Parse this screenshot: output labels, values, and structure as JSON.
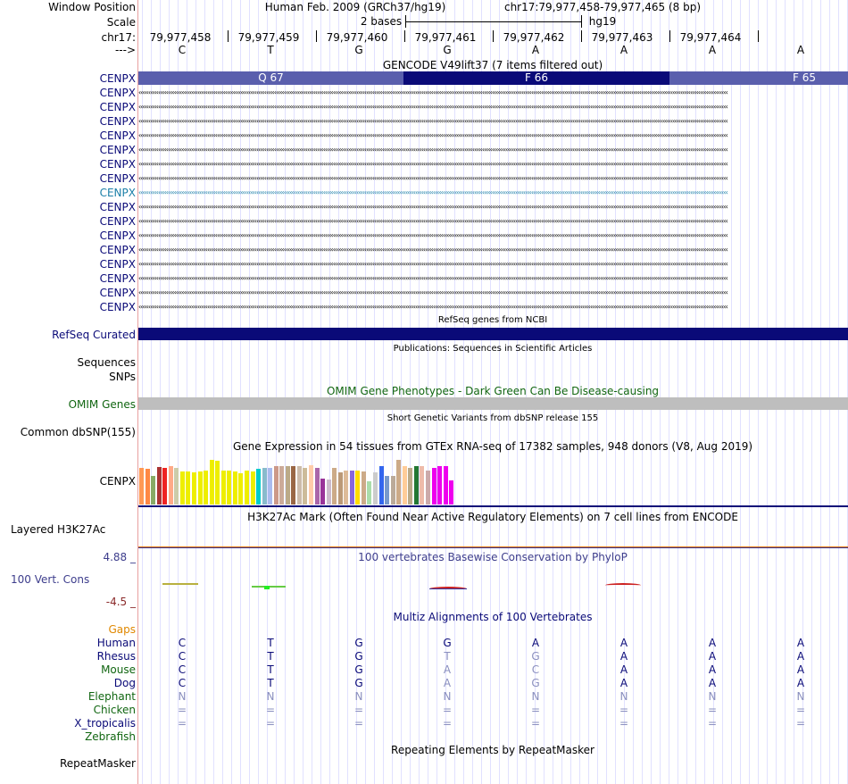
{
  "header": {
    "window_position_label": "Window Position",
    "assembly_text": "Human Feb. 2009 (GRCh37/hg19)",
    "position_text": "chr17:79,977,458-79,977,465 (8 bp)",
    "scale_label": "Scale",
    "scale_text": "2 bases",
    "scale_db": "hg19",
    "chrom_label": "chr17:",
    "strand_label": "--->",
    "ruler_ticks": [
      "79,977,458",
      "79,977,459",
      "79,977,460",
      "79,977,461",
      "79,977,462",
      "79,977,463",
      "79,977,464"
    ],
    "bases": [
      "C",
      "T",
      "G",
      "G",
      "A",
      "A",
      "A",
      "A"
    ]
  },
  "gencode": {
    "title": "GENCODE V49lift37 (7 items filtered out)",
    "codons": [
      {
        "label": "Q 67",
        "color": "#5a5fad"
      },
      {
        "label": "F 66",
        "color": "#0a0a78"
      },
      {
        "label": "F 65",
        "color": "#5a5fad"
      }
    ],
    "transcripts": [
      "CENPX",
      "CENPX",
      "CENPX",
      "CENPX",
      "CENPX",
      "CENPX",
      "CENPX",
      "CENPX",
      "CENPX",
      "CENPX",
      "CENPX",
      "CENPX",
      "CENPX",
      "CENPX",
      "CENPX",
      "CENPX",
      "CENPX"
    ],
    "highlight_index": 8,
    "label_color": "#0a0a78",
    "highlight_color": "#1b7fa8"
  },
  "refseq": {
    "title": "RefSeq genes from NCBI",
    "label": "RefSeq Curated",
    "bar_color": "#0a0a78"
  },
  "publications": {
    "title": "Publications: Sequences in Scientific Articles",
    "label_sequences": "Sequences",
    "label_snps": "SNPs"
  },
  "omim": {
    "title": "OMIM Gene Phenotypes - Dark Green Can Be Disease-causing",
    "label": "OMIM Genes",
    "color": "#116611"
  },
  "dbsnp": {
    "title": "Short Genetic Variants from dbSNP release 155",
    "label": "Common dbSNP(155)"
  },
  "gtex": {
    "title": "Gene Expression in 54 tissues from GTEx RNA-seq of 17382 samples, 948 donors (V8, Aug 2019)",
    "label": "CENPX",
    "tissue_expression": [
      0.9,
      0.88,
      0.72,
      0.93,
      0.9,
      0.95,
      0.9,
      0.82,
      0.82,
      0.8,
      0.82,
      0.85,
      1.12,
      1.08,
      0.85,
      0.85,
      0.82,
      0.78,
      0.85,
      0.82,
      0.88,
      0.92,
      0.92,
      0.95,
      0.95,
      0.95,
      0.95,
      0.95,
      0.92,
      0.98,
      0.92,
      0.65,
      0.62,
      0.92,
      0.8,
      0.85,
      0.85,
      0.85,
      0.82,
      0.58,
      0.8,
      0.95,
      0.72,
      0.72,
      1.1,
      0.95,
      0.92,
      0.95,
      0.95,
      0.85,
      0.92,
      0.95,
      0.95,
      0.6
    ],
    "tissue_colors": [
      "#ff9955",
      "#ff8844",
      "#88aa66",
      "#aa3333",
      "#ee2222",
      "#ffaa88",
      "#ccccaa",
      "#eeee00",
      "#eeee00",
      "#eeee00",
      "#eeee00",
      "#eeee00",
      "#eeee00",
      "#eeee00",
      "#eeee00",
      "#eeee00",
      "#eeee00",
      "#eeee00",
      "#eeee00",
      "#eeee00",
      "#00cccc",
      "#88bbcc",
      "#aabbee",
      "#cc9988",
      "#ccaa99",
      "#bbaa88",
      "#996644",
      "#ccbbaa",
      "#ccbb99",
      "#ffccaa",
      "#aa66aa",
      "#993399",
      "#ccbbcc",
      "#ccaa88",
      "#bb9977",
      "#ddbb99",
      "#8866dd",
      "#ffdd00",
      "#ccaa88",
      "#aaddaa",
      "#cccccc",
      "#3366ee",
      "#7799cc",
      "#bbaa99",
      "#ccaa88",
      "#ffcc99",
      "#bbaa88",
      "#227733",
      "#eebbaa",
      "#ccaaaa",
      "#ee00ee",
      "#ee00ee",
      "#ee00ee",
      "#ee00ee"
    ]
  },
  "h3k27ac": {
    "title": "H3K27Ac Mark (Often Found Near Active Regulatory Elements) on 7 cell lines from ENCODE",
    "label": "Layered H3K27Ac"
  },
  "conservation": {
    "title": "100 vertebrates Basewise Conservation by PhyloP",
    "label": "100 Vert. Cons",
    "max_text": "4.88 _",
    "min_text": "-4.5 _",
    "color": "#3d3d8c"
  },
  "multiz": {
    "title": "Multiz Alignments of 100 Vertebrates",
    "gaps_label": "Gaps",
    "species": [
      {
        "name": "Human",
        "color": "#0a0a78",
        "seq": [
          "C",
          "T",
          "G",
          "G",
          "A",
          "A",
          "A",
          "A"
        ],
        "dim": [
          0,
          0,
          0,
          0,
          0,
          0,
          0,
          0
        ]
      },
      {
        "name": "Rhesus",
        "color": "#0a0a78",
        "seq": [
          "C",
          "T",
          "G",
          "T",
          "G",
          "A",
          "A",
          "A"
        ],
        "dim": [
          0,
          0,
          0,
          1,
          1,
          0,
          0,
          0
        ]
      },
      {
        "name": "Mouse",
        "color": "#116611",
        "seq": [
          "C",
          "T",
          "G",
          "A",
          "C",
          "A",
          "A",
          "A"
        ],
        "dim": [
          0,
          0,
          0,
          1,
          1,
          0,
          0,
          0
        ]
      },
      {
        "name": "Dog",
        "color": "#0a0a78",
        "seq": [
          "C",
          "T",
          "G",
          "A",
          "G",
          "A",
          "A",
          "A"
        ],
        "dim": [
          0,
          0,
          0,
          1,
          1,
          0,
          0,
          0
        ]
      },
      {
        "name": "Elephant",
        "color": "#116611",
        "seq": [
          "N",
          "N",
          "N",
          "N",
          "N",
          "N",
          "N",
          "N"
        ],
        "dim": [
          1,
          1,
          1,
          1,
          1,
          1,
          1,
          1
        ]
      },
      {
        "name": "Chicken",
        "color": "#116611",
        "seq": [
          "=",
          "=",
          "=",
          "=",
          "=",
          "=",
          "=",
          "="
        ],
        "dim": [
          1,
          1,
          1,
          1,
          1,
          1,
          1,
          1
        ]
      },
      {
        "name": "X_tropicalis",
        "color": "#0a0a78",
        "seq": [
          "=",
          "=",
          "=",
          "=",
          "=",
          "=",
          "=",
          "="
        ],
        "dim": [
          1,
          1,
          1,
          1,
          1,
          1,
          1,
          1
        ]
      },
      {
        "name": "Zebrafish",
        "color": "#116611",
        "seq": [
          "",
          "",
          "",
          "",
          "",
          "",
          "",
          ""
        ],
        "dim": [
          0,
          0,
          0,
          0,
          0,
          0,
          0,
          0
        ]
      }
    ]
  },
  "repeatmasker": {
    "title": "Repeating Elements by RepeatMasker",
    "label": "RepeatMasker"
  }
}
